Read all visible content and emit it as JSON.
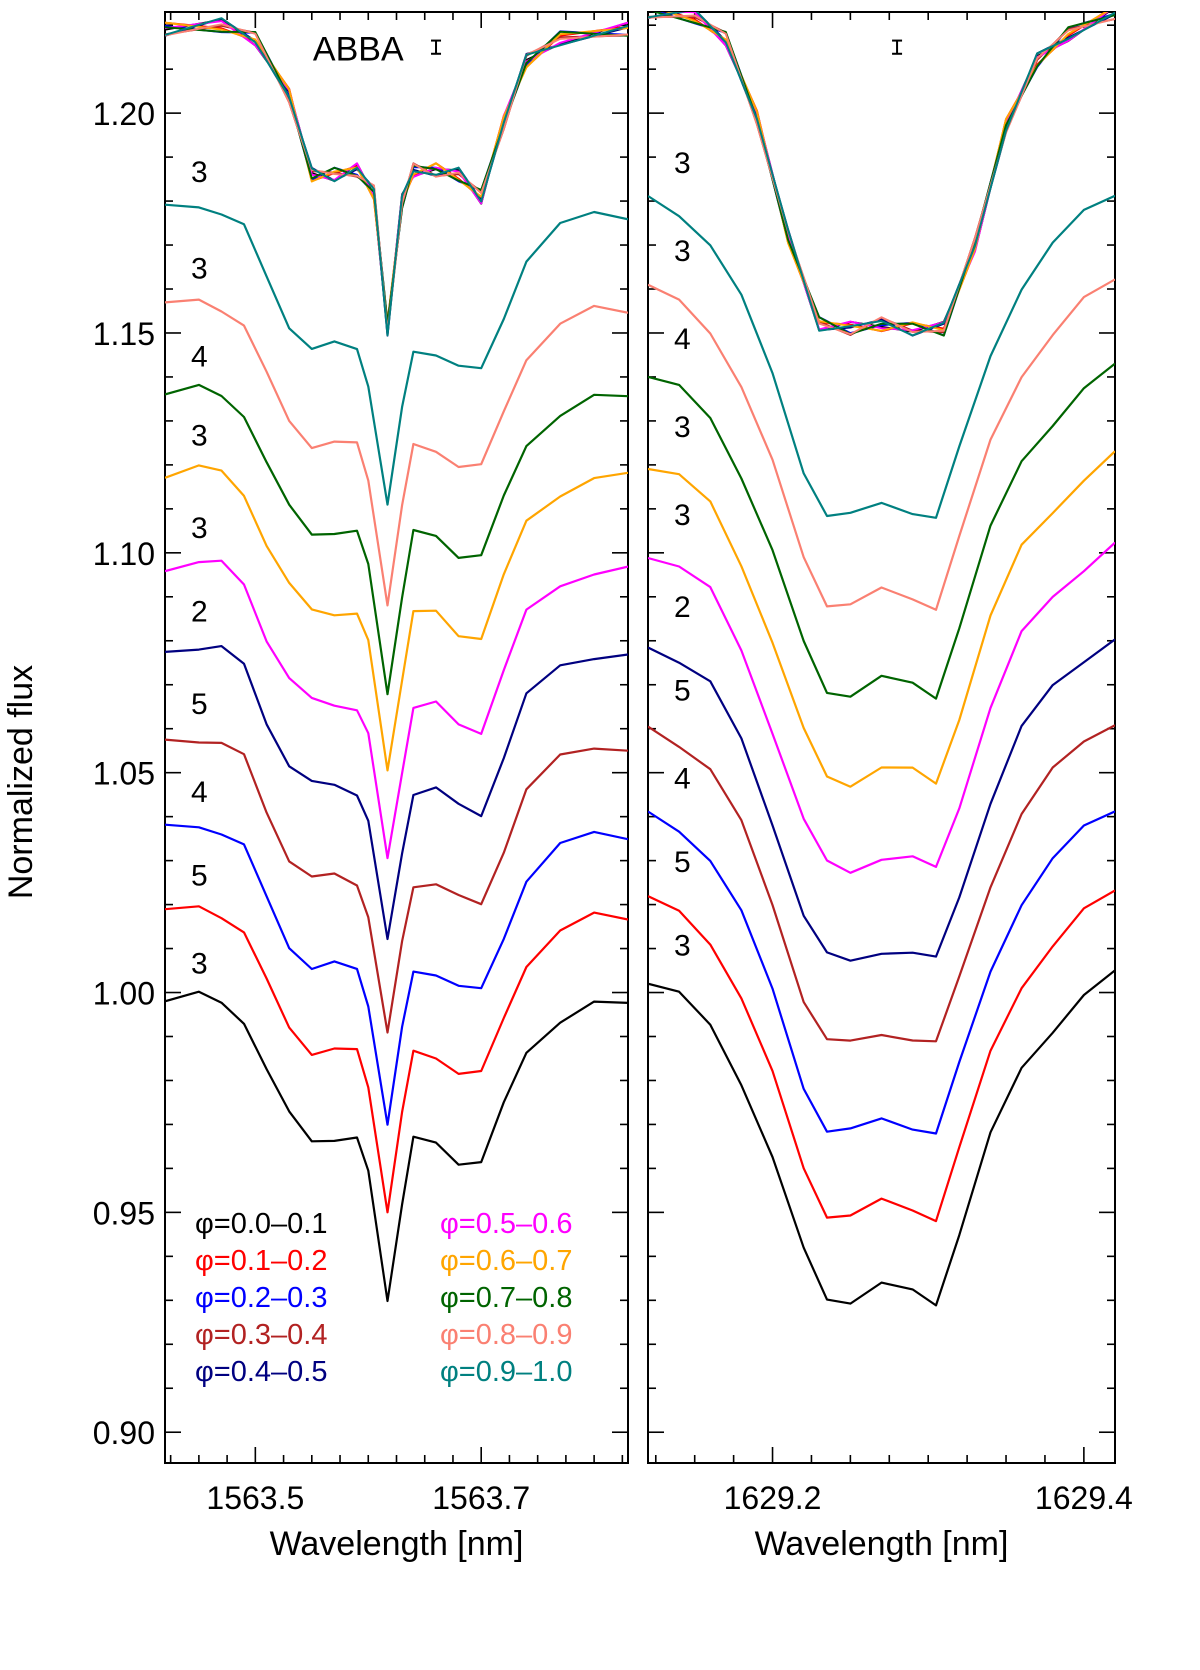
{
  "chart_data": [
    {
      "type": "line",
      "panel": "left",
      "title": "",
      "xlabel": "Wavelength [nm]",
      "ylabel": "Normalized flux",
      "xlim": [
        1563.42,
        1563.83
      ],
      "ylim": [
        0.893,
        1.223
      ],
      "xticks": [
        1563.5,
        1563.7
      ],
      "xtick_labels": [
        "1563.5",
        "1563.7"
      ],
      "yticks": [
        0.9,
        0.95,
        1.0,
        1.05,
        1.1,
        1.15,
        1.2
      ],
      "ytick_labels": [
        "0.90",
        "0.95",
        "1.00",
        "1.05",
        "1.10",
        "1.15",
        "1.20"
      ],
      "annotation": "ABBA",
      "error_bar": {
        "x": 1563.66,
        "y": 1.215,
        "half_height": 0.0015
      },
      "series_labels": [
        "3",
        "5",
        "4",
        "5",
        "2",
        "3",
        "3",
        "4",
        "3",
        "3"
      ],
      "abba_y": [
        {
          "x": 1563.42,
          "y": 1.219
        },
        {
          "x": 1563.47,
          "y": 1.22
        },
        {
          "x": 1563.5,
          "y": 1.217
        },
        {
          "x": 1563.53,
          "y": 1.204
        },
        {
          "x": 1563.55,
          "y": 1.186
        },
        {
          "x": 1563.57,
          "y": 1.186
        },
        {
          "x": 1563.59,
          "y": 1.187
        },
        {
          "x": 1563.605,
          "y": 1.182
        },
        {
          "x": 1563.617,
          "y": 1.151
        },
        {
          "x": 1563.63,
          "y": 1.18
        },
        {
          "x": 1563.64,
          "y": 1.187
        },
        {
          "x": 1563.66,
          "y": 1.187
        },
        {
          "x": 1563.68,
          "y": 1.186
        },
        {
          "x": 1563.7,
          "y": 1.181
        },
        {
          "x": 1563.72,
          "y": 1.198
        },
        {
          "x": 1563.74,
          "y": 1.212
        },
        {
          "x": 1563.77,
          "y": 1.217
        },
        {
          "x": 1563.83,
          "y": 1.219
        }
      ],
      "series": [
        {
          "name": "φ=0.0–0.1",
          "color": "#000000",
          "offset": 0.0
        },
        {
          "name": "φ=0.1–0.2",
          "color": "#ff0000",
          "offset": 0.02
        },
        {
          "name": "φ=0.2–0.3",
          "color": "#0000ff",
          "offset": 0.039
        },
        {
          "name": "φ=0.3–0.4",
          "color": "#b22222",
          "offset": 0.059
        },
        {
          "name": "φ=0.4–0.5",
          "color": "#000080",
          "offset": 0.08
        },
        {
          "name": "φ=0.5–0.6",
          "color": "#ff00ff",
          "offset": 0.099
        },
        {
          "name": "φ=0.6–0.7",
          "color": "#ffa500",
          "offset": 0.12
        },
        {
          "name": "φ=0.7–0.8",
          "color": "#006400",
          "offset": 0.138
        },
        {
          "name": "φ=0.8–0.9",
          "color": "#fa8072",
          "offset": 0.158
        },
        {
          "name": "φ=0.9–1.0",
          "color": "#008080",
          "offset": 0.18
        }
      ],
      "profile": [
        {
          "x": 1563.42,
          "y": 0.998
        },
        {
          "x": 1563.45,
          "y": 0.999
        },
        {
          "x": 1563.47,
          "y": 0.998
        },
        {
          "x": 1563.49,
          "y": 0.994
        },
        {
          "x": 1563.51,
          "y": 0.982
        },
        {
          "x": 1563.53,
          "y": 0.972
        },
        {
          "x": 1563.55,
          "y": 0.967
        },
        {
          "x": 1563.57,
          "y": 0.967
        },
        {
          "x": 1563.59,
          "y": 0.966
        },
        {
          "x": 1563.6,
          "y": 0.959
        },
        {
          "x": 1563.617,
          "y": 0.931
        },
        {
          "x": 1563.63,
          "y": 0.952
        },
        {
          "x": 1563.64,
          "y": 0.966
        },
        {
          "x": 1563.66,
          "y": 0.966
        },
        {
          "x": 1563.68,
          "y": 0.962
        },
        {
          "x": 1563.7,
          "y": 0.961
        },
        {
          "x": 1563.72,
          "y": 0.974
        },
        {
          "x": 1563.74,
          "y": 0.987
        },
        {
          "x": 1563.77,
          "y": 0.994
        },
        {
          "x": 1563.8,
          "y": 0.997
        },
        {
          "x": 1563.83,
          "y": 0.997
        }
      ],
      "legend": {
        "placement": "bottom",
        "columns": 2
      }
    },
    {
      "type": "line",
      "panel": "right",
      "title": "",
      "xlabel": "Wavelength [nm]",
      "ylabel": "",
      "xlim": [
        1629.12,
        1629.42
      ],
      "ylim": [
        0.893,
        1.223
      ],
      "xticks": [
        1629.2,
        1629.4
      ],
      "xtick_labels": [
        "1629.2",
        "1629.4"
      ],
      "yticks": [
        0.9,
        0.95,
        1.0,
        1.05,
        1.1,
        1.15,
        1.2
      ],
      "ytick_labels": [],
      "error_bar": {
        "x": 1629.28,
        "y": 1.215,
        "half_height": 0.0015
      },
      "series_labels": [
        "3",
        "5",
        "4",
        "5",
        "2",
        "3",
        "3",
        "4",
        "3",
        "3"
      ],
      "abba_y": [
        {
          "x": 1629.12,
          "y": 1.223
        },
        {
          "x": 1629.15,
          "y": 1.222
        },
        {
          "x": 1629.17,
          "y": 1.217
        },
        {
          "x": 1629.19,
          "y": 1.199
        },
        {
          "x": 1629.21,
          "y": 1.172
        },
        {
          "x": 1629.23,
          "y": 1.152
        },
        {
          "x": 1629.25,
          "y": 1.151
        },
        {
          "x": 1629.27,
          "y": 1.152
        },
        {
          "x": 1629.29,
          "y": 1.151
        },
        {
          "x": 1629.31,
          "y": 1.151
        },
        {
          "x": 1629.33,
          "y": 1.17
        },
        {
          "x": 1629.35,
          "y": 1.197
        },
        {
          "x": 1629.37,
          "y": 1.212
        },
        {
          "x": 1629.39,
          "y": 1.218
        },
        {
          "x": 1629.42,
          "y": 1.223
        }
      ],
      "series": [
        {
          "name": "φ=0.0–0.1",
          "color": "#000000",
          "offset": 0.0
        },
        {
          "name": "φ=0.1–0.2",
          "color": "#ff0000",
          "offset": 0.019
        },
        {
          "name": "φ=0.2–0.3",
          "color": "#0000ff",
          "offset": 0.038
        },
        {
          "name": "φ=0.3–0.4",
          "color": "#b22222",
          "offset": 0.058
        },
        {
          "name": "φ=0.4–0.5",
          "color": "#000080",
          "offset": 0.077
        },
        {
          "name": "φ=0.5–0.6",
          "color": "#ff00ff",
          "offset": 0.098
        },
        {
          "name": "φ=0.6–0.7",
          "color": "#ffa500",
          "offset": 0.118
        },
        {
          "name": "φ=0.7–0.8",
          "color": "#006400",
          "offset": 0.138
        },
        {
          "name": "φ=0.8–0.9",
          "color": "#fa8072",
          "offset": 0.158
        },
        {
          "name": "φ=0.9–1.0",
          "color": "#008080",
          "offset": 0.178
        }
      ],
      "profile": [
        {
          "x": 1629.12,
          "y": 1.002
        },
        {
          "x": 1629.14,
          "y": 0.999
        },
        {
          "x": 1629.16,
          "y": 0.993
        },
        {
          "x": 1629.18,
          "y": 0.98
        },
        {
          "x": 1629.2,
          "y": 0.962
        },
        {
          "x": 1629.22,
          "y": 0.941
        },
        {
          "x": 1629.235,
          "y": 0.931
        },
        {
          "x": 1629.25,
          "y": 0.93
        },
        {
          "x": 1629.27,
          "y": 0.933
        },
        {
          "x": 1629.29,
          "y": 0.932
        },
        {
          "x": 1629.305,
          "y": 0.93
        },
        {
          "x": 1629.32,
          "y": 0.945
        },
        {
          "x": 1629.34,
          "y": 0.967
        },
        {
          "x": 1629.36,
          "y": 0.983
        },
        {
          "x": 1629.38,
          "y": 0.992
        },
        {
          "x": 1629.4,
          "y": 0.999
        },
        {
          "x": 1629.42,
          "y": 1.004
        }
      ]
    }
  ]
}
